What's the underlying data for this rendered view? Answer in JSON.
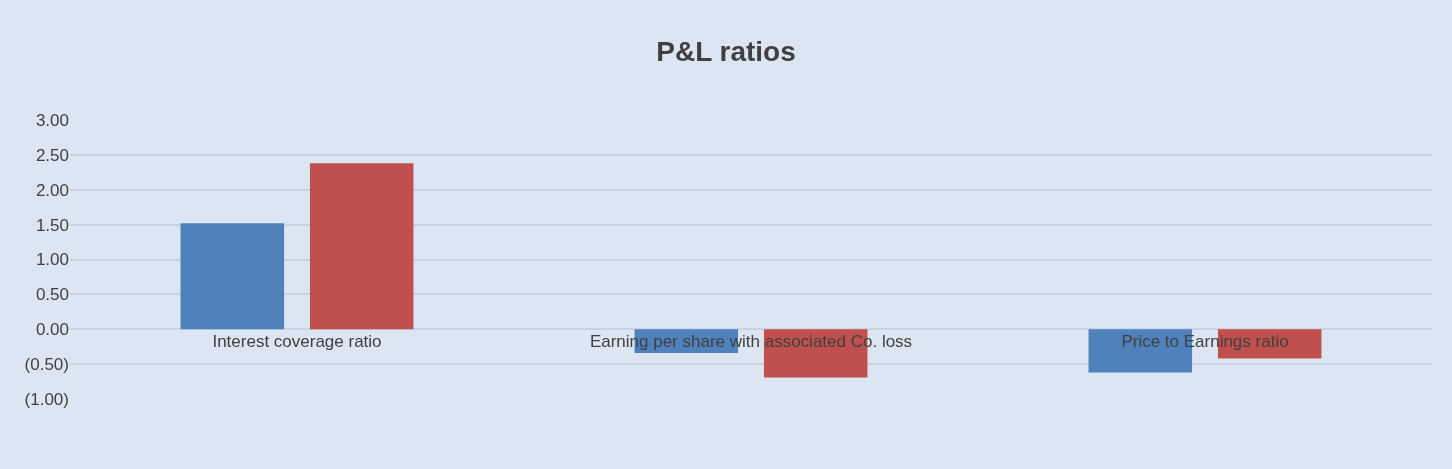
{
  "chart_data": {
    "type": "bar",
    "title": "P&L ratios",
    "categories": [
      "Interest coverage ratio",
      "Earning per share with associated Co. loss",
      "Price to Earnings ratio"
    ],
    "series": [
      {
        "color": "#4f81bd",
        "values": [
          1.52,
          -0.34,
          -0.62
        ]
      },
      {
        "color": "#c0504d",
        "values": [
          2.38,
          -0.69,
          -0.42
        ]
      }
    ],
    "ylim": [
      -1,
      3
    ],
    "yticks": [
      {
        "value": 3,
        "label": "3.00"
      },
      {
        "value": 2.5,
        "label": "2.50"
      },
      {
        "value": 2,
        "label": "2.00"
      },
      {
        "value": 1.5,
        "label": "1.50"
      },
      {
        "value": 1,
        "label": "1.00"
      },
      {
        "value": 0.5,
        "label": "0.50"
      },
      {
        "value": 0,
        "label": "0.00"
      },
      {
        "value": -0.5,
        "label": "(0.50)"
      },
      {
        "value": -1,
        "label": "(1.00)"
      }
    ],
    "grid": "y"
  }
}
